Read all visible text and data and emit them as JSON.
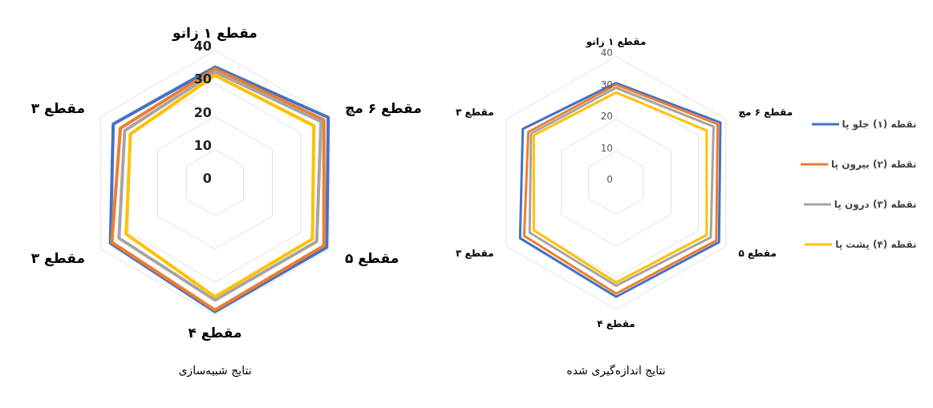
{
  "chart_data": [
    {
      "type": "radar",
      "title": "نتایج شبیه‌سازی",
      "categories": [
        "مقطع ۱ زانو",
        "مقطع ۶ مچ",
        "مقطع ۵",
        "مقطع ۴",
        "مقطع ۳",
        "مقطع ۳"
      ],
      "ylim": [
        0,
        40
      ],
      "yticks": [
        0,
        10,
        20,
        30,
        40
      ],
      "grid": true,
      "legend": false,
      "marker": "none",
      "series": [
        {
          "color": "#4472c4",
          "values": [
            35,
            39.5,
            39,
            39,
            36.5,
            35.5
          ]
        },
        {
          "color": "#ed7d31",
          "values": [
            34.5,
            38,
            38,
            38.5,
            36,
            33
          ]
        },
        {
          "color": "#a5a5a5",
          "values": [
            33.5,
            37,
            35.5,
            35.5,
            33.5,
            31.5
          ]
        },
        {
          "color": "#ffc000",
          "values": [
            32.5,
            34.5,
            34,
            34.5,
            31,
            29.5
          ]
        }
      ]
    },
    {
      "type": "radar",
      "title": "نتایج اندازه‌گیری شده",
      "categories": [
        "مقطع ۱ زانو",
        "مقطع ۶ مچ",
        "مقطع ۵",
        "مقطع ۴",
        "مقطع ۳",
        "مقطع ۳"
      ],
      "ylim": [
        0,
        40
      ],
      "yticks": [
        0,
        10,
        20,
        30,
        40
      ],
      "grid": true,
      "legend": "right",
      "marker": "none",
      "series": [
        {
          "name": "نقطه (۱) جلو پا",
          "color": "#4472c4",
          "values": [
            31.5,
            38,
            37.5,
            36,
            35,
            34
          ]
        },
        {
          "name": "نقطه (۲) بیرون پا",
          "color": "#ed7d31",
          "values": [
            31,
            37,
            36.5,
            35,
            33.5,
            32
          ]
        },
        {
          "name": "نقطه (۳) درون پا",
          "color": "#a5a5a5",
          "values": [
            30,
            35.5,
            34.5,
            32.5,
            31.5,
            31
          ]
        },
        {
          "name": "نقطه (۴) پشت پا",
          "color": "#ffc000",
          "values": [
            28.5,
            33,
            33,
            31.5,
            30,
            30
          ]
        }
      ]
    }
  ]
}
